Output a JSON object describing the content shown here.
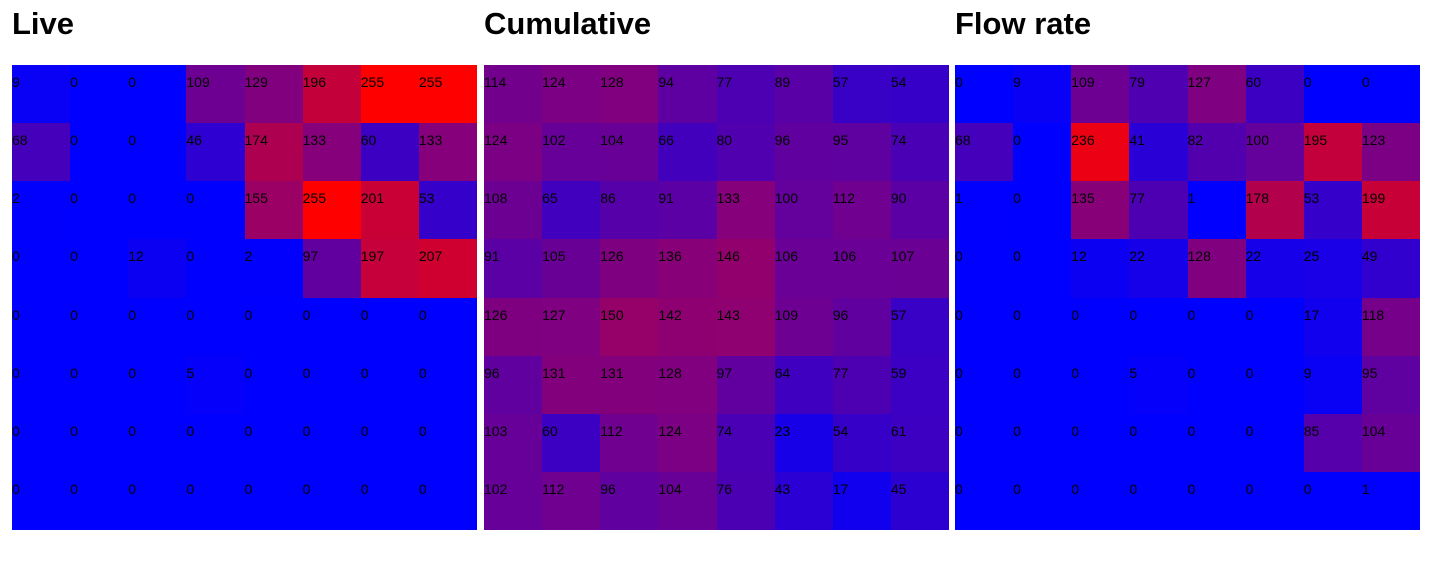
{
  "chart_data": [
    {
      "type": "heatmap",
      "title": "Live",
      "color_low": "#0000ff",
      "color_high": "#ff0000",
      "value_range": [
        0,
        255
      ],
      "values": [
        [
          9,
          0,
          0,
          109,
          129,
          196,
          255,
          255
        ],
        [
          68,
          0,
          0,
          46,
          174,
          133,
          60,
          133
        ],
        [
          2,
          0,
          0,
          0,
          155,
          255,
          201,
          53
        ],
        [
          0,
          0,
          12,
          0,
          2,
          97,
          197,
          207
        ],
        [
          0,
          0,
          0,
          0,
          0,
          0,
          0,
          0
        ],
        [
          0,
          0,
          0,
          5,
          0,
          0,
          0,
          0
        ],
        [
          0,
          0,
          0,
          0,
          0,
          0,
          0,
          0
        ],
        [
          0,
          0,
          0,
          0,
          0,
          0,
          0,
          0
        ]
      ]
    },
    {
      "type": "heatmap",
      "title": "Cumulative",
      "color_low": "#0000ff",
      "color_high": "#ff0000",
      "value_range": [
        0,
        255
      ],
      "values": [
        [
          114,
          124,
          128,
          94,
          77,
          89,
          57,
          54
        ],
        [
          124,
          102,
          104,
          66,
          80,
          96,
          95,
          74
        ],
        [
          108,
          65,
          86,
          91,
          133,
          100,
          112,
          90
        ],
        [
          91,
          105,
          126,
          136,
          146,
          106,
          106,
          107
        ],
        [
          126,
          127,
          150,
          142,
          143,
          109,
          96,
          57
        ],
        [
          96,
          131,
          131,
          128,
          97,
          64,
          77,
          59
        ],
        [
          103,
          60,
          112,
          124,
          74,
          23,
          54,
          61
        ],
        [
          102,
          112,
          96,
          104,
          76,
          43,
          17,
          45
        ]
      ]
    },
    {
      "type": "heatmap",
      "title": "Flow rate",
      "color_low": "#0000ff",
      "color_high": "#ff0000",
      "value_range": [
        0,
        255
      ],
      "values": [
        [
          0,
          9,
          109,
          79,
          127,
          60,
          0,
          0
        ],
        [
          68,
          0,
          236,
          41,
          82,
          100,
          195,
          123
        ],
        [
          1,
          0,
          135,
          77,
          1,
          178,
          53,
          199
        ],
        [
          0,
          0,
          12,
          22,
          128,
          22,
          25,
          49
        ],
        [
          0,
          0,
          0,
          0,
          0,
          0,
          17,
          118
        ],
        [
          0,
          0,
          0,
          5,
          0,
          0,
          9,
          95
        ],
        [
          0,
          0,
          0,
          0,
          0,
          0,
          85,
          104
        ],
        [
          0,
          0,
          0,
          0,
          0,
          0,
          0,
          1
        ]
      ]
    }
  ]
}
